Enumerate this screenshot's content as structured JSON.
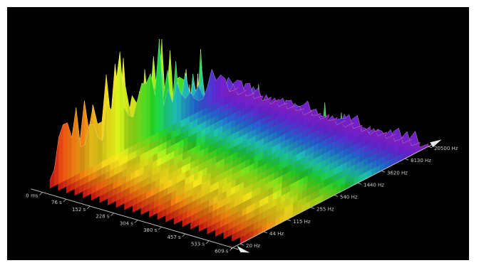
{
  "chart_data": {
    "type": "waterfall-3d",
    "title": "",
    "time_axis": {
      "ticks": [
        "0 ms",
        "76 s",
        "152 s",
        "228 s",
        "304 s",
        "380 s",
        "457 s",
        "533 s",
        "609 s"
      ]
    },
    "frequency_axis": {
      "ticks": [
        "20 Hz",
        "44 Hz",
        "115 Hz",
        "255 Hz",
        "540 Hz",
        "1440 Hz",
        "3620 Hz",
        "8130 Hz",
        "20500 Hz"
      ]
    },
    "amplitude_axis": {
      "label": "",
      "visible": false
    },
    "color_scale": [
      "#ff1a1a",
      "#ff7a10",
      "#ffd41a",
      "#f2f21a",
      "#9cf21a",
      "#22e22a",
      "#22e2d0",
      "#2a7aff",
      "#7a2aff",
      "#c02aff"
    ],
    "grid": false,
    "legend": "none",
    "background": "#000000",
    "time_frames": 24,
    "frequency_bins": 44
  }
}
